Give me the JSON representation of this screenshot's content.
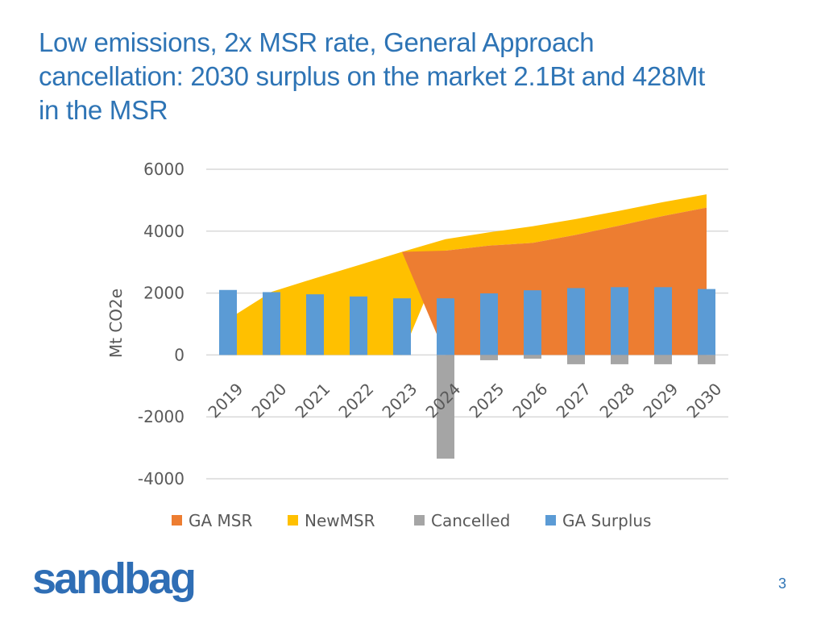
{
  "slide": {
    "title_lines": [
      "Low emissions, 2x MSR rate, General Approach",
      "cancellation: 2030 surplus on the market 2.1Bt and 428Mt",
      "in the MSR"
    ],
    "logo_text": "sandbag",
    "page_number": "3"
  },
  "colors": {
    "title": "#2E74B5",
    "ga_msr": "#ED7D31",
    "new_msr": "#FFC000",
    "cancelled": "#A5A5A5",
    "ga_surplus": "#5B9BD5",
    "grid": "#D9D9D9",
    "axis_text": "#595959"
  },
  "chart_data": {
    "type": "bar",
    "title": "",
    "ylabel": "Mt CO2e",
    "xlabel": "",
    "ylim": [
      -4000,
      6000
    ],
    "yticks": [
      6000,
      4000,
      2000,
      0,
      -2000,
      -4000
    ],
    "categories": [
      "2019",
      "2020",
      "2021",
      "2022",
      "2023",
      "2024",
      "2025",
      "2026",
      "2027",
      "2028",
      "2029",
      "2030"
    ],
    "grid": true,
    "legend_position": "bottom",
    "series": [
      {
        "name": "GA MSR",
        "kind": "stacked-area",
        "color": "#ED7D31",
        "values": [
          0,
          0,
          0,
          0,
          0,
          3370,
          3530,
          3620,
          3880,
          4180,
          4490,
          4760
        ]
      },
      {
        "name": "NewMSR",
        "kind": "stacked-area",
        "color": "#FFC000",
        "values": [
          1150,
          2040,
          2480,
          2900,
          3330,
          370,
          430,
          540,
          510,
          480,
          450,
          430
        ]
      },
      {
        "name": "Cancelled",
        "kind": "bar",
        "color": "#A5A5A5",
        "values": [
          0,
          0,
          0,
          0,
          0,
          -3350,
          -170,
          -120,
          -300,
          -300,
          -300,
          -300
        ]
      },
      {
        "name": "GA Surplus",
        "kind": "bar",
        "color": "#5B9BD5",
        "values": [
          2100,
          2030,
          1960,
          1890,
          1830,
          1830,
          1990,
          2090,
          2160,
          2190,
          2190,
          2130
        ]
      }
    ]
  }
}
